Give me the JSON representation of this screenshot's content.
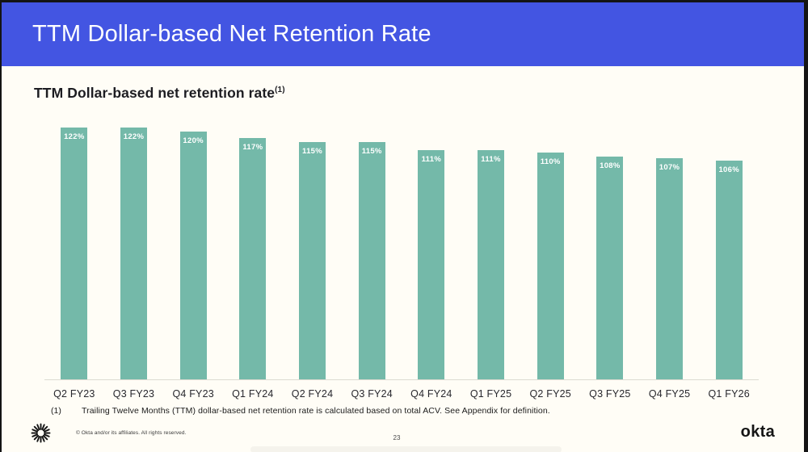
{
  "header": {
    "title": "TTM Dollar-based Net Retention Rate"
  },
  "subtitle": {
    "text": "TTM Dollar-based net retention rate",
    "superscript": "(1)"
  },
  "chart_data": {
    "type": "bar",
    "title": "TTM Dollar-based net retention rate (1)",
    "categories": [
      "Q2 FY23",
      "Q3 FY23",
      "Q4 FY23",
      "Q1 FY24",
      "Q2 FY24",
      "Q3 FY24",
      "Q4 FY24",
      "Q1 FY25",
      "Q2 FY25",
      "Q3 FY25",
      "Q4 FY25",
      "Q1 FY26"
    ],
    "values": [
      122,
      122,
      120,
      117,
      115,
      115,
      111,
      111,
      110,
      108,
      107,
      106
    ],
    "value_labels": [
      "122%",
      "122%",
      "120%",
      "117%",
      "115%",
      "115%",
      "111%",
      "111%",
      "110%",
      "108%",
      "107%",
      "106%"
    ],
    "unit": "%",
    "xlabel": "",
    "ylabel": "",
    "ylim": [
      0,
      130
    ],
    "grid": false,
    "legend": false,
    "bar_color": "#74B9A9",
    "value_label_color": "#FFFFFF"
  },
  "footnote": {
    "marker": "(1)",
    "text": "Trailing Twelve Months (TTM) dollar-based net retention rate is calculated based on total ACV. See Appendix for definition."
  },
  "footer": {
    "copyright": "© Okta and/or its affiliates. All rights reserved.",
    "page_number": "23",
    "logo_text": "okta",
    "logo_icon": "sunburst-icon"
  },
  "colors": {
    "header_background": "#4355E2",
    "slide_background": "#FFFDF6",
    "bar": "#74B9A9",
    "frame": "#141414"
  }
}
